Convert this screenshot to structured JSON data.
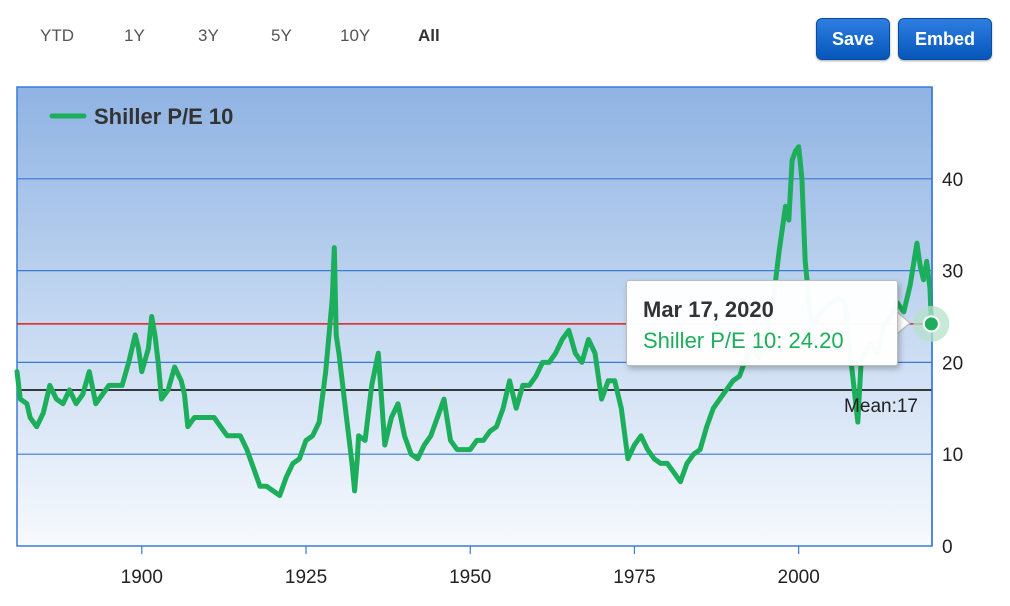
{
  "range_selector": {
    "buttons": [
      "YTD",
      "1Y",
      "3Y",
      "5Y",
      "10Y",
      "All"
    ],
    "selected": "All"
  },
  "actions": {
    "save_label": "Save",
    "embed_label": "Embed"
  },
  "tooltip": {
    "date": "Mar 17, 2020",
    "series_label": "Shiller P/E 10",
    "value_text": "24.20",
    "separator": ": "
  },
  "colors": {
    "series": "#1cae5a",
    "mean_line": "#000000",
    "current_line": "#e02020",
    "grid": "#3b7ad6",
    "accent_button": "#0a62cc"
  },
  "chart_data": {
    "type": "line",
    "legend": {
      "position": "top-left"
    },
    "x_ticks": [
      1900,
      1925,
      1950,
      1975,
      2000
    ],
    "y_ticks": [
      0,
      10,
      20,
      30,
      40
    ],
    "xlim": [
      1881,
      2020.3
    ],
    "ylim": [
      0,
      50
    ],
    "grid": true,
    "reference_lines": [
      {
        "label": "Mean:17",
        "value": 17
      },
      {
        "label": "",
        "value": 24.2
      }
    ],
    "series": [
      {
        "name": "Shiller P/E 10",
        "x": [
          1881,
          1881.5,
          1882.5,
          1883,
          1884,
          1885,
          1886,
          1887,
          1888,
          1889,
          1890,
          1891,
          1892,
          1893,
          1894,
          1895,
          1896,
          1897,
          1898,
          1899,
          1899.5,
          1900,
          1901,
          1901.5,
          1902,
          1902.5,
          1903,
          1904,
          1905,
          1906,
          1906.5,
          1907,
          1908,
          1909,
          1910,
          1911,
          1912,
          1913,
          1914,
          1915,
          1916,
          1917,
          1918,
          1919,
          1920,
          1921,
          1922,
          1923,
          1924,
          1925,
          1926,
          1927,
          1928,
          1929,
          1929.3,
          1929.6,
          1930,
          1931,
          1932,
          1932.4,
          1932.8,
          1933,
          1934,
          1935,
          1936,
          1937,
          1938,
          1939,
          1940,
          1941,
          1942,
          1943,
          1944,
          1945,
          1946,
          1947,
          1948,
          1949,
          1950,
          1951,
          1952,
          1953,
          1954,
          1955,
          1956,
          1957,
          1958,
          1959,
          1960,
          1961,
          1962,
          1963,
          1964,
          1965,
          1966,
          1967,
          1968,
          1969,
          1970,
          1971,
          1972,
          1973,
          1974,
          1975,
          1976,
          1977,
          1978,
          1979,
          1980,
          1981,
          1982,
          1983,
          1984,
          1985,
          1986,
          1987,
          1988,
          1989,
          1990,
          1991,
          1992,
          1993,
          1994,
          1995,
          1996,
          1997,
          1998,
          1998.5,
          1999,
          1999.5,
          2000,
          2000.5,
          2001,
          2002,
          2003,
          2004,
          2005,
          2006,
          2007,
          2008,
          2009,
          2009.5,
          2010,
          2011,
          2012,
          2013,
          2014,
          2015,
          2016,
          2017,
          2018,
          2018.5,
          2019,
          2019.5,
          2020,
          2020.2
        ],
        "y": [
          19,
          16,
          15.5,
          14,
          13,
          14.5,
          17.5,
          16,
          15.5,
          17,
          15.5,
          16.5,
          19,
          15.5,
          16.5,
          17.5,
          17.5,
          17.5,
          20,
          23,
          21.5,
          19,
          21.5,
          25,
          23,
          20,
          16,
          17,
          19.5,
          18,
          16.5,
          13,
          14,
          14,
          14,
          14,
          13,
          12,
          12,
          12,
          10.5,
          8.5,
          6.5,
          6.5,
          6,
          5.5,
          7.5,
          9,
          9.5,
          11.5,
          12,
          13.5,
          19,
          27,
          32.5,
          23,
          21,
          15,
          9,
          6,
          9.5,
          12,
          11.5,
          17.5,
          21,
          11,
          14,
          15.5,
          12,
          10,
          9.5,
          11,
          12,
          14,
          16,
          11.5,
          10.5,
          10.5,
          10.5,
          11.5,
          11.5,
          12.5,
          13,
          15,
          18,
          15,
          17.5,
          17.5,
          18.5,
          20,
          20,
          21,
          22.5,
          23.5,
          21,
          20,
          22.5,
          21,
          16,
          18,
          18,
          15,
          9.5,
          11,
          12,
          10.5,
          9.5,
          9,
          9,
          8,
          7,
          9,
          10,
          10.5,
          13,
          15,
          16,
          17,
          18,
          18.5,
          20.5,
          21.5,
          20.5,
          23,
          26,
          32,
          37,
          35.5,
          42,
          43,
          43.5,
          40,
          31,
          23.5,
          25,
          26,
          26.5,
          27,
          26.5,
          20,
          13.5,
          20,
          21,
          22,
          21,
          24,
          25,
          26.5,
          25.5,
          28.5,
          33,
          30.5,
          29,
          31,
          28,
          24.2
        ]
      }
    ]
  }
}
